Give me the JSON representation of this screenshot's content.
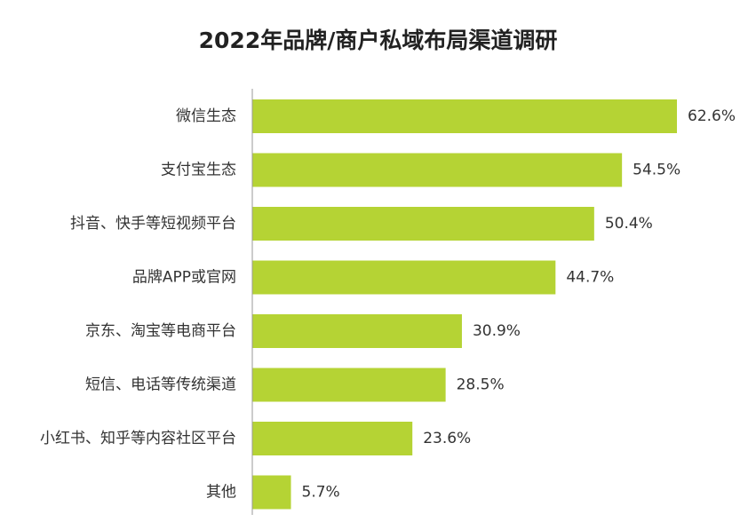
{
  "chart_data": {
    "type": "bar",
    "orientation": "horizontal",
    "title": "2022年品牌/商户私域布局渠道调研",
    "categories": [
      "微信生态",
      "支付宝生态",
      "抖音、快手等短视频平台",
      "品牌APP或官网",
      "京东、淘宝等电商平台",
      "短信、电话等传统渠道",
      "小红书、知乎等内容社区平台",
      "其他"
    ],
    "values": [
      62.6,
      54.5,
      50.4,
      44.7,
      30.9,
      28.5,
      23.6,
      5.7
    ],
    "value_labels": [
      "62.6%",
      "54.5%",
      "50.4%",
      "44.7%",
      "30.9%",
      "28.5%",
      "23.6%",
      "5.7%"
    ],
    "xlim": [
      0,
      100
    ],
    "bar_color": "#b5d334",
    "axis_color": "#999999",
    "grid": false,
    "legend": "none"
  }
}
